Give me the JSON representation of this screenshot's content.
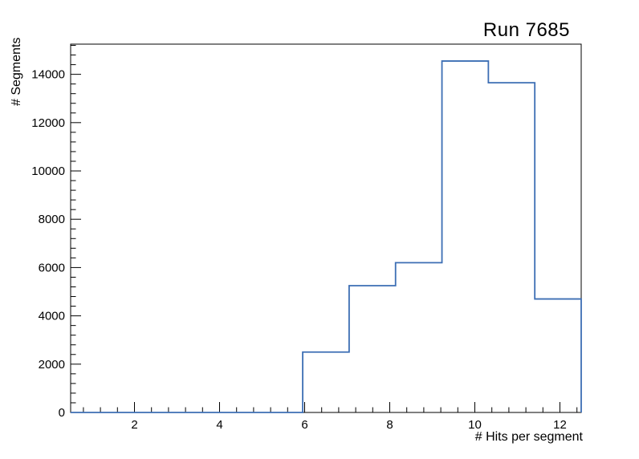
{
  "title": "Run 7685",
  "colors": {
    "hist_line": "#3c6eb4",
    "axis": "#000000",
    "background": "#ffffff",
    "text": "#000000"
  },
  "chart_data": {
    "type": "bar",
    "style": "step-outline-histogram",
    "title": "Run 7685",
    "xlabel": "# Hits per segment",
    "ylabel": "# Segments",
    "xlim": [
      0.5,
      12.5
    ],
    "ylim": [
      0,
      15250
    ],
    "grid": false,
    "legend": null,
    "bin_edges": [
      0.5,
      1.5909,
      2.6818,
      3.7727,
      4.8636,
      5.9545,
      7.0455,
      8.1364,
      9.2273,
      10.3182,
      11.4091,
      12.5
    ],
    "values": [
      0,
      0,
      0,
      0,
      0,
      2500,
      5250,
      6200,
      14550,
      13650,
      4700
    ],
    "x_major_tick_values": [
      2,
      4,
      6,
      8,
      10,
      12
    ],
    "x_major_tick_labels": [
      "2",
      "4",
      "6",
      "8",
      "10",
      "12"
    ],
    "x_minor_step": 0.4,
    "y_major_tick_values": [
      0,
      2000,
      4000,
      6000,
      8000,
      10000,
      12000,
      14000
    ],
    "y_major_tick_labels": [
      "0",
      "2000",
      "4000",
      "6000",
      "8000",
      "10000",
      "12000",
      "14000"
    ],
    "y_minor_step": 400
  }
}
